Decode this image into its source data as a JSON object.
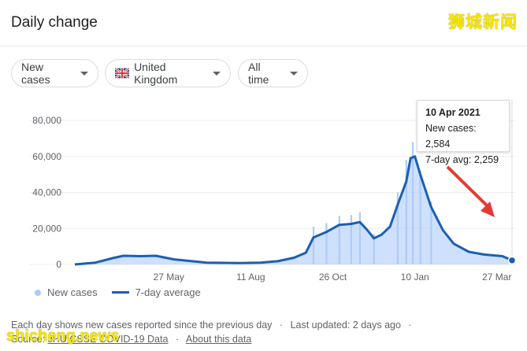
{
  "header": {
    "title": "Daily change",
    "watermark": "狮城新闻"
  },
  "filters": {
    "metric": "New cases",
    "country": "United Kingdom",
    "range": "All time"
  },
  "tooltip": {
    "date": "10 Apr 2021",
    "line1": "New cases: 2,584",
    "line2": "7-day avg: 2,259"
  },
  "legend": {
    "bars": "New cases",
    "line": "7-day average"
  },
  "footer": {
    "note": "Each day shows new cases reported since the previous day",
    "sep": "·",
    "updated": "Last updated: 2 days ago",
    "source_prefix": "Source:",
    "source_link": "JHU CSSE COVID-19 Data",
    "about": "About this data"
  },
  "watermark_bottom": "shicheng.news",
  "colors": {
    "line": "#1a5fb4",
    "bars": "#aecbfa",
    "arrow": "#e53935",
    "watermark": "#f6e600"
  },
  "chart_data": {
    "type": "bar",
    "title": "",
    "xlabel": "",
    "ylabel": "",
    "ylim": [
      0,
      80000
    ],
    "yticks": [
      0,
      20000,
      40000,
      60000,
      80000
    ],
    "ytick_labels": [
      "0",
      "20,000",
      "40,000",
      "60,000",
      "80,000"
    ],
    "xticks": [
      "27 May",
      "11 Aug",
      "26 Oct",
      "10 Jan",
      "27 Mar"
    ],
    "grid": true,
    "legend_position": "bottom-left",
    "series": [
      {
        "name": "7-day average",
        "type": "line",
        "points": [
          [
            "2020-03-01",
            0
          ],
          [
            "2020-03-20",
            1000
          ],
          [
            "2020-04-05",
            3500
          ],
          [
            "2020-04-15",
            4800
          ],
          [
            "2020-05-01",
            4600
          ],
          [
            "2020-05-15",
            4800
          ],
          [
            "2020-06-01",
            2800
          ],
          [
            "2020-07-01",
            1000
          ],
          [
            "2020-08-01",
            800
          ],
          [
            "2020-08-20",
            1000
          ],
          [
            "2020-09-05",
            1800
          ],
          [
            "2020-09-20",
            3700
          ],
          [
            "2020-10-01",
            6500
          ],
          [
            "2020-10-08",
            15000
          ],
          [
            "2020-10-20",
            18000
          ],
          [
            "2020-11-01",
            22000
          ],
          [
            "2020-11-12",
            22500
          ],
          [
            "2020-11-20",
            23500
          ],
          [
            "2020-11-27",
            19000
          ],
          [
            "2020-12-03",
            14500
          ],
          [
            "2020-12-10",
            16500
          ],
          [
            "2020-12-18",
            21000
          ],
          [
            "2020-12-25",
            33000
          ],
          [
            "2021-01-02",
            46000
          ],
          [
            "2021-01-06",
            59000
          ],
          [
            "2021-01-10",
            60000
          ],
          [
            "2021-01-15",
            50000
          ],
          [
            "2021-01-25",
            32000
          ],
          [
            "2021-02-05",
            19000
          ],
          [
            "2021-02-15",
            11500
          ],
          [
            "2021-03-01",
            7000
          ],
          [
            "2021-03-15",
            5500
          ],
          [
            "2021-04-01",
            4600
          ],
          [
            "2021-04-10",
            2259
          ]
        ]
      },
      {
        "name": "New cases",
        "type": "bar",
        "samples": [
          [
            "2020-10-08",
            21000
          ],
          [
            "2020-10-20",
            23000
          ],
          [
            "2020-11-01",
            27000
          ],
          [
            "2020-11-12",
            27500
          ],
          [
            "2020-11-20",
            29000
          ],
          [
            "2020-12-03",
            17000
          ],
          [
            "2020-12-25",
            40000
          ],
          [
            "2021-01-02",
            58000
          ],
          [
            "2021-01-08",
            68000
          ],
          [
            "2021-01-15",
            52000
          ],
          [
            "2021-01-25",
            35000
          ],
          [
            "2021-04-10",
            2584
          ]
        ]
      }
    ],
    "highlight": {
      "date": "2021-04-10",
      "new_cases": 2584,
      "avg": 2259
    }
  }
}
